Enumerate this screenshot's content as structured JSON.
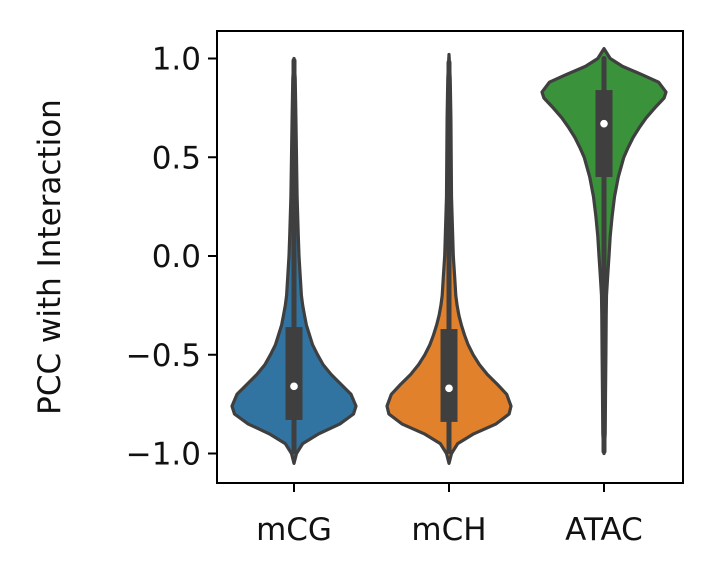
{
  "chart_data": {
    "type": "violin",
    "title": "",
    "xlabel": "",
    "ylabel": "PCC with Interaction",
    "ylim": [
      -1.15,
      1.15
    ],
    "yticks": [
      1.0,
      0.5,
      0.0,
      -0.5,
      -1.0
    ],
    "ytick_labels": [
      "1.0",
      "0.5",
      "0.0",
      "−0.5",
      "−1.0"
    ],
    "categories": [
      "mCG",
      "mCH",
      "ATAC"
    ],
    "grid": false,
    "legend": "none",
    "series": [
      {
        "category": "mCG",
        "color": "#3274a1",
        "min": -1.05,
        "max": 1.0,
        "q1": -0.83,
        "median": -0.66,
        "q3": -0.36,
        "whisker_low": -0.99,
        "whisker_high": 0.99,
        "density": [
          [
            -1.05,
            0.0
          ],
          [
            -1.0,
            0.04
          ],
          [
            -0.95,
            0.14
          ],
          [
            -0.9,
            0.4
          ],
          [
            -0.85,
            0.74
          ],
          [
            -0.8,
            0.96
          ],
          [
            -0.76,
            1.0
          ],
          [
            -0.7,
            0.92
          ],
          [
            -0.65,
            0.76
          ],
          [
            -0.6,
            0.6
          ],
          [
            -0.55,
            0.47
          ],
          [
            -0.5,
            0.38
          ],
          [
            -0.45,
            0.3
          ],
          [
            -0.4,
            0.25
          ],
          [
            -0.35,
            0.2
          ],
          [
            -0.3,
            0.17
          ],
          [
            -0.25,
            0.14
          ],
          [
            -0.2,
            0.12
          ],
          [
            -0.1,
            0.1
          ],
          [
            0.0,
            0.08
          ],
          [
            0.1,
            0.07
          ],
          [
            0.2,
            0.06
          ],
          [
            0.3,
            0.05
          ],
          [
            0.5,
            0.04
          ],
          [
            0.7,
            0.03
          ],
          [
            0.9,
            0.02
          ],
          [
            1.0,
            0.0
          ]
        ]
      },
      {
        "category": "mCH",
        "color": "#e1812c",
        "min": -1.05,
        "max": 1.02,
        "q1": -0.84,
        "median": -0.67,
        "q3": -0.37,
        "whisker_low": -0.99,
        "whisker_high": 0.98,
        "density": [
          [
            -1.05,
            0.0
          ],
          [
            -1.0,
            0.04
          ],
          [
            -0.95,
            0.14
          ],
          [
            -0.9,
            0.4
          ],
          [
            -0.85,
            0.76
          ],
          [
            -0.8,
            0.97
          ],
          [
            -0.76,
            1.0
          ],
          [
            -0.7,
            0.93
          ],
          [
            -0.65,
            0.78
          ],
          [
            -0.6,
            0.62
          ],
          [
            -0.55,
            0.49
          ],
          [
            -0.5,
            0.39
          ],
          [
            -0.45,
            0.31
          ],
          [
            -0.4,
            0.25
          ],
          [
            -0.35,
            0.2
          ],
          [
            -0.3,
            0.16
          ],
          [
            -0.25,
            0.13
          ],
          [
            -0.2,
            0.11
          ],
          [
            -0.1,
            0.09
          ],
          [
            0.0,
            0.07
          ],
          [
            0.1,
            0.06
          ],
          [
            0.2,
            0.05
          ],
          [
            0.3,
            0.04
          ],
          [
            0.5,
            0.035
          ],
          [
            0.7,
            0.03
          ],
          [
            0.9,
            0.02
          ],
          [
            1.02,
            0.0
          ]
        ]
      },
      {
        "category": "ATAC",
        "color": "#3a923a",
        "min": -1.0,
        "max": 1.05,
        "q1": 0.4,
        "median": 0.67,
        "q3": 0.84,
        "whisker_low": -0.99,
        "whisker_high": 1.0,
        "density": [
          [
            -1.0,
            0.0
          ],
          [
            -0.9,
            0.02
          ],
          [
            -0.7,
            0.025
          ],
          [
            -0.5,
            0.03
          ],
          [
            -0.3,
            0.035
          ],
          [
            -0.2,
            0.04
          ],
          [
            -0.1,
            0.06
          ],
          [
            0.0,
            0.08
          ],
          [
            0.1,
            0.1
          ],
          [
            0.2,
            0.13
          ],
          [
            0.3,
            0.17
          ],
          [
            0.4,
            0.23
          ],
          [
            0.5,
            0.32
          ],
          [
            0.55,
            0.39
          ],
          [
            0.6,
            0.47
          ],
          [
            0.65,
            0.57
          ],
          [
            0.7,
            0.68
          ],
          [
            0.75,
            0.82
          ],
          [
            0.8,
            0.97
          ],
          [
            0.83,
            1.0
          ],
          [
            0.88,
            0.88
          ],
          [
            0.92,
            0.6
          ],
          [
            0.96,
            0.3
          ],
          [
            1.0,
            0.1
          ],
          [
            1.05,
            0.0
          ]
        ]
      }
    ]
  }
}
